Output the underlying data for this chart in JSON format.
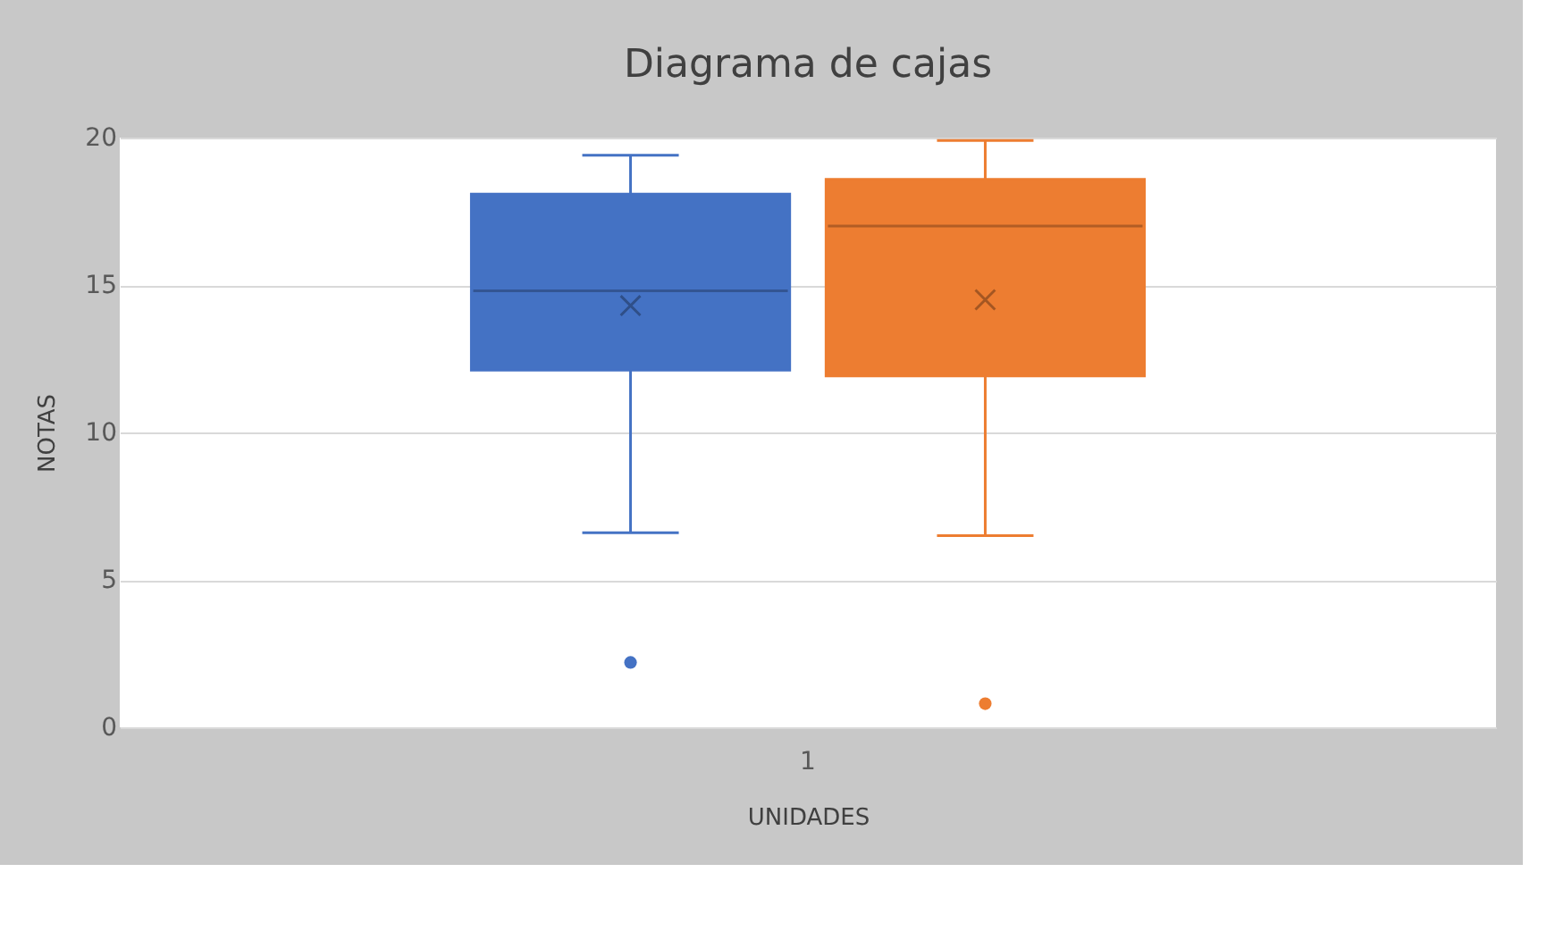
{
  "chart_data": {
    "type": "box",
    "title": "Diagrama de cajas",
    "xlabel": "UNIDADES",
    "ylabel": "NOTAS",
    "categories": [
      "1"
    ],
    "ylim": [
      0,
      20
    ],
    "yticks": [
      0,
      5,
      10,
      15,
      20
    ],
    "grid": "y",
    "series": [
      {
        "color": "#4472c4",
        "boxes": [
          {
            "low": 6.6,
            "q1": 12.1,
            "median": 14.8,
            "q3": 18.1,
            "high": 19.4,
            "mean": 14.3,
            "outliers": [
              2.2
            ]
          }
        ]
      },
      {
        "color": "#ed7d31",
        "boxes": [
          {
            "low": 6.5,
            "q1": 11.9,
            "median": 17.0,
            "q3": 18.6,
            "high": 19.9,
            "mean": 14.5,
            "outliers": [
              0.8
            ]
          }
        ]
      }
    ]
  }
}
